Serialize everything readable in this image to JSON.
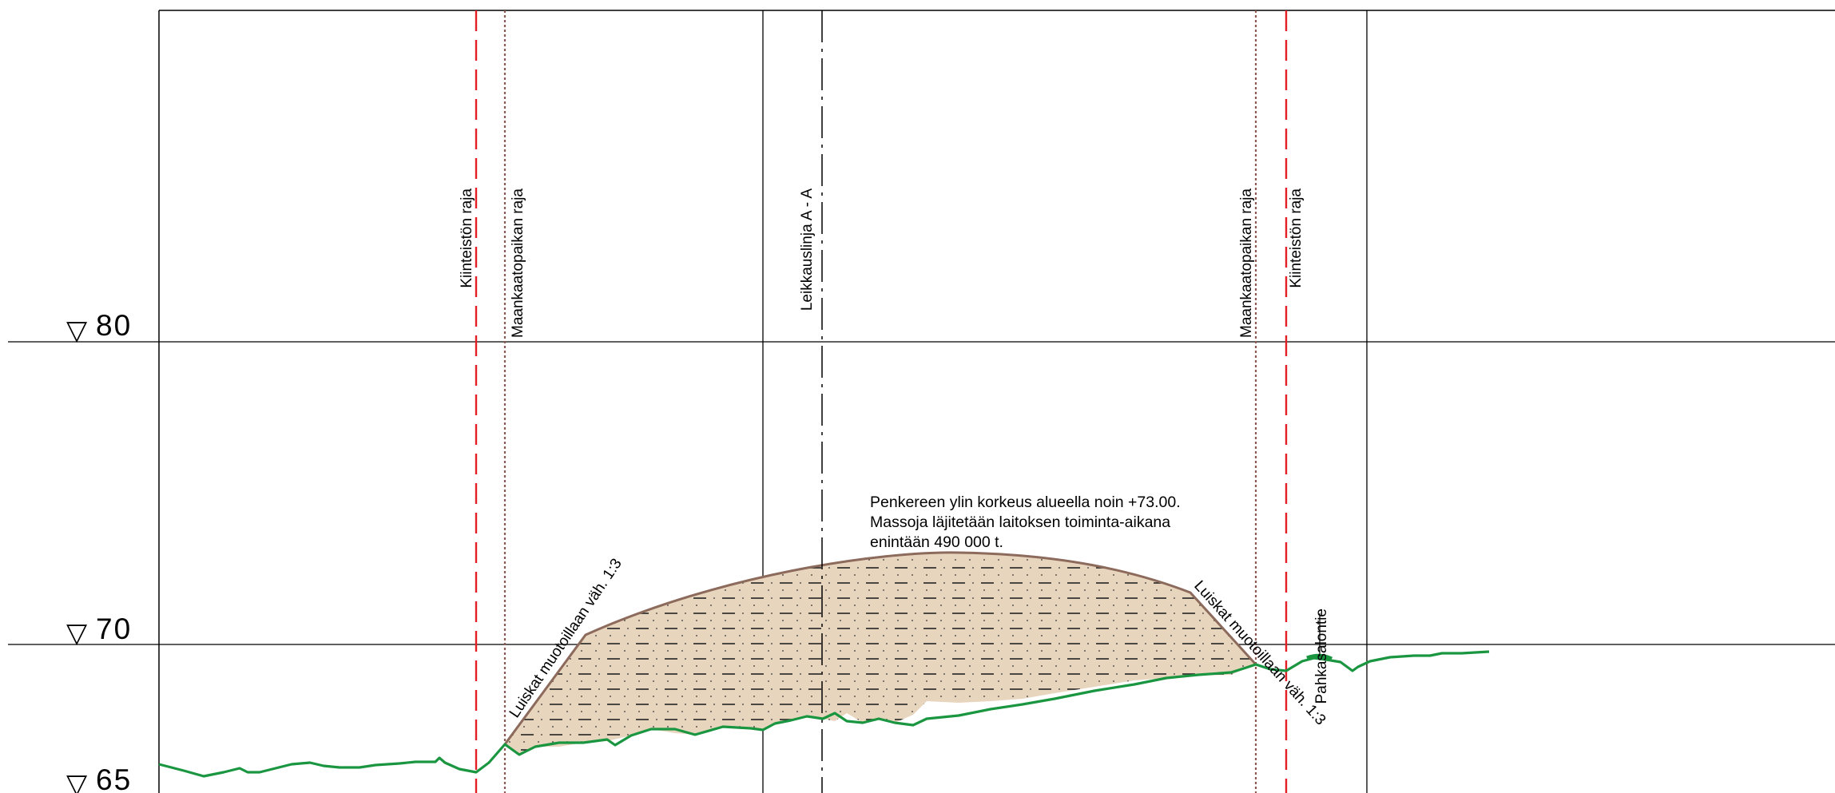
{
  "elevations": [
    {
      "value": "80",
      "marker": "▽"
    },
    {
      "value": "70",
      "marker": "▽"
    },
    {
      "value": "65",
      "marker": "▽"
    }
  ],
  "labels": {
    "property_boundary_left": "Kiinteistön raja",
    "extraction_boundary_left": "Maankaatopaikan raja",
    "section_line": "Leikkauslinja A - A",
    "extraction_boundary_right": "Maankaatopaikan raja",
    "property_boundary_right": "Kiinteistön raja",
    "road": "Pahkasalontie",
    "slope_left": "Luiskat muotoillaan väh. 1:3",
    "slope_right": "Luiskat muotoillaan väh. 1:3"
  },
  "note": {
    "line1": "Penkereen ylin korkeus alueella noin +73.00.",
    "line2": "Massoja läjitetään laitoksen toiminta-aikana",
    "line3": "enintään 490 000 t."
  },
  "colors": {
    "grid": "#000000",
    "property_boundary": "#e31e24",
    "extraction_boundary": "#8c5a52",
    "ground_line": "#1a9641",
    "fill": "#e8d5bd",
    "fill_outline": "#8c6a5c"
  }
}
